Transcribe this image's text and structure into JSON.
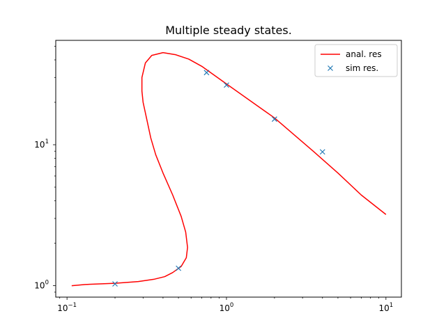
{
  "chart_data": {
    "type": "line",
    "title": "Multiple steady states.",
    "xlabel": "",
    "ylabel": "",
    "xscale": "log",
    "yscale": "log",
    "xlim": [
      0.085,
      12.5
    ],
    "ylim": [
      0.83,
      55
    ],
    "grid": false,
    "legend": "top-right",
    "x_ticks": [
      {
        "value": 0.1,
        "base": "10",
        "exp": "−1"
      },
      {
        "value": 1,
        "base": "10",
        "exp": "0"
      },
      {
        "value": 10,
        "base": "10",
        "exp": "1"
      }
    ],
    "y_ticks": [
      {
        "value": 1,
        "base": "10",
        "exp": "0"
      },
      {
        "value": 10,
        "base": "10",
        "exp": "1"
      }
    ],
    "series": [
      {
        "name": "anal. res",
        "style": "line",
        "color": "#ff0000",
        "points": [
          [
            0.107,
            1.0
          ],
          [
            0.13,
            1.02
          ],
          [
            0.2,
            1.04
          ],
          [
            0.28,
            1.07
          ],
          [
            0.35,
            1.11
          ],
          [
            0.41,
            1.16
          ],
          [
            0.46,
            1.24
          ],
          [
            0.52,
            1.37
          ],
          [
            0.56,
            1.58
          ],
          [
            0.57,
            1.87
          ],
          [
            0.555,
            2.4
          ],
          [
            0.52,
            3.1
          ],
          [
            0.46,
            4.4
          ],
          [
            0.4,
            6.3
          ],
          [
            0.36,
            8.5
          ],
          [
            0.335,
            11.2
          ],
          [
            0.315,
            15.5
          ],
          [
            0.3,
            20.0
          ],
          [
            0.295,
            24.0
          ],
          [
            0.295,
            30.0
          ],
          [
            0.31,
            38.0
          ],
          [
            0.34,
            43.0
          ],
          [
            0.4,
            45.0
          ],
          [
            0.48,
            43.5
          ],
          [
            0.58,
            40.5
          ],
          [
            0.7,
            36.0
          ],
          [
            1.0,
            27.0
          ],
          [
            2.0,
            15.5
          ],
          [
            3.5,
            9.0
          ],
          [
            5.0,
            6.3
          ],
          [
            7.0,
            4.4
          ],
          [
            10.0,
            3.2
          ]
        ]
      },
      {
        "name": "sim res.",
        "style": "marker",
        "marker": "x",
        "color": "#1f77b4",
        "points": [
          [
            0.2,
            1.03
          ],
          [
            0.5,
            1.33
          ],
          [
            0.75,
            32.5
          ],
          [
            1.0,
            26.5
          ],
          [
            2.0,
            15.2
          ],
          [
            4.0,
            8.9
          ]
        ]
      }
    ]
  }
}
